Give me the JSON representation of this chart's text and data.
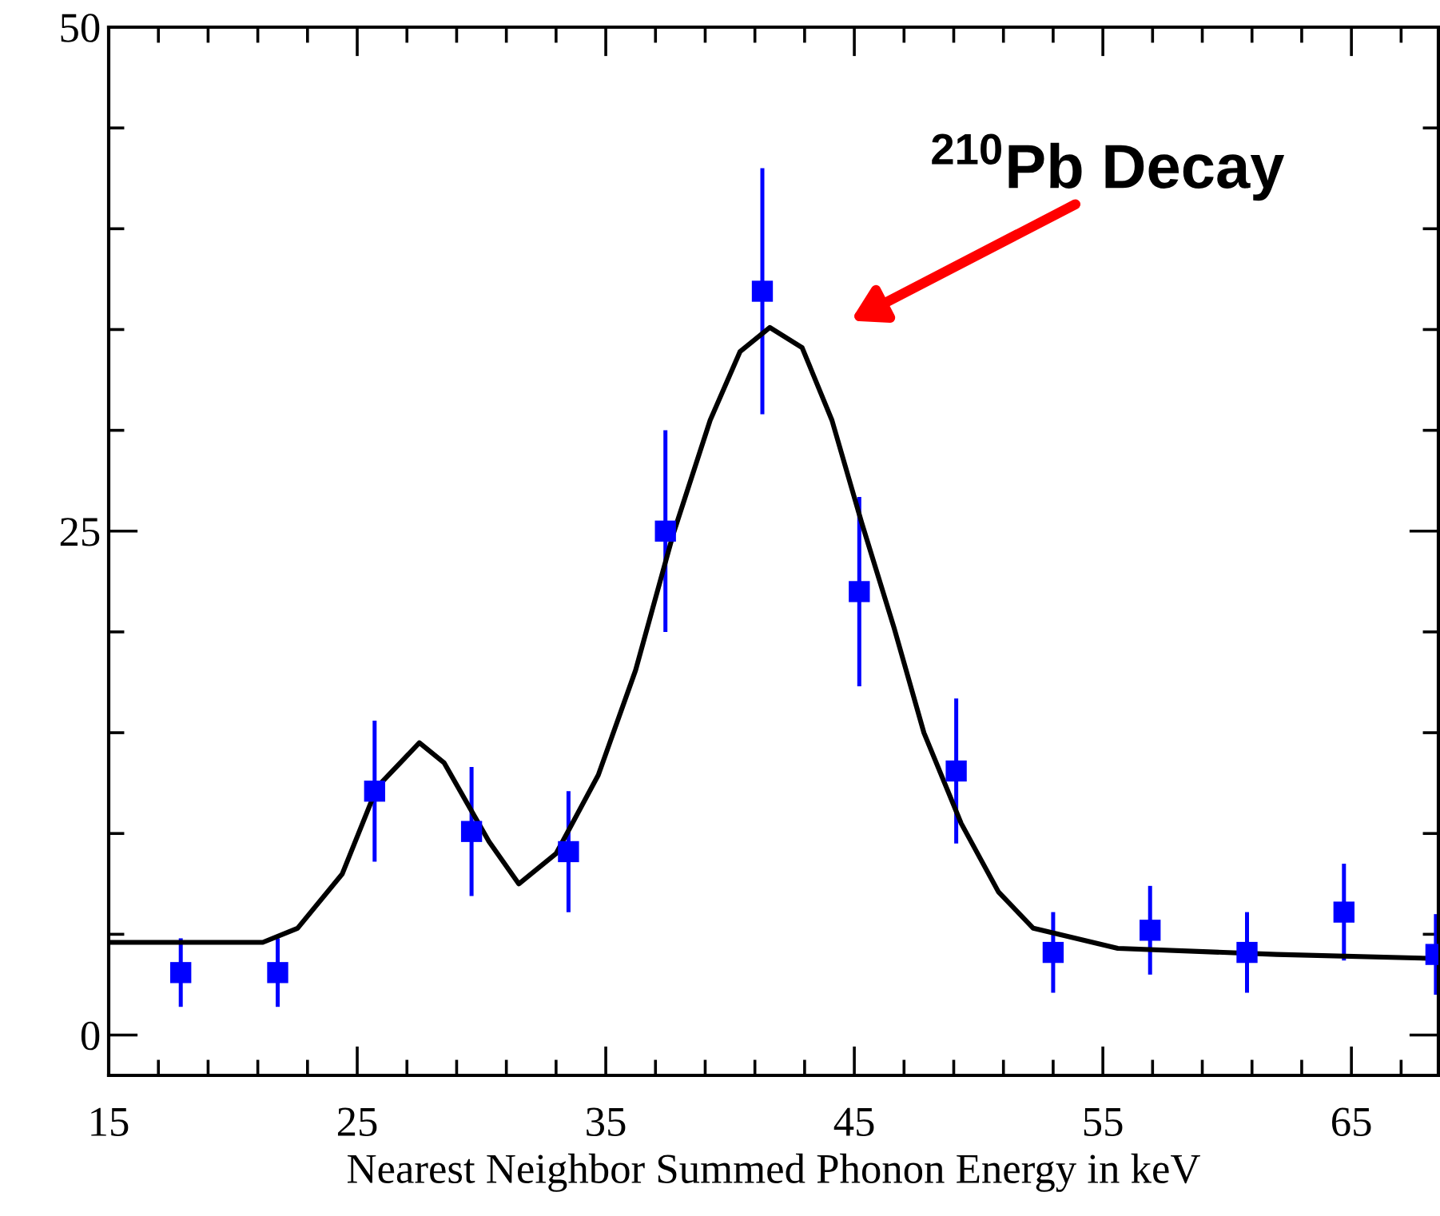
{
  "chart_data": {
    "type": "scatter",
    "xlabel": "Nearest Neighbor Summed Phonon Energy in keV",
    "xlim": [
      15,
      68.5
    ],
    "xticks": [
      15,
      25,
      35,
      45,
      55,
      65
    ],
    "ylim": [
      -2,
      50
    ],
    "yticks": [
      0,
      25,
      50
    ],
    "grid": false,
    "legend": false,
    "series": [
      {
        "color": "#0000ff",
        "marker": "square",
        "x": [
          17.9,
          21.8,
          25.7,
          29.6,
          33.5,
          37.4,
          41.3,
          45.2,
          49.1,
          53.0,
          56.9,
          60.8,
          64.7,
          68.4
        ],
        "values": [
          3.1,
          3.1,
          12.1,
          10.1,
          9.1,
          25,
          36.9,
          22.0,
          13.1,
          4.1,
          5.2,
          4.1,
          6.1,
          4.0
        ],
        "errors": [
          1.7,
          1.7,
          3.5,
          3.2,
          3,
          5,
          6.1,
          4.7,
          3.6,
          2,
          2.2,
          2,
          2.4,
          2
        ]
      },
      {
        "type": "line",
        "color": "#000000",
        "marker": "none",
        "line_style": "solid",
        "x": [
          15,
          21.2,
          22.6,
          24.4,
          25.8,
          27.5,
          28.5,
          30.3,
          31.5,
          33.0,
          34.7,
          36.2,
          37.7,
          39.2,
          40.4,
          41.6,
          42.9,
          44.1,
          45.3,
          46.6,
          47.8,
          49.3,
          50.8,
          52.2,
          55.6,
          62.0,
          68.4
        ],
        "values": [
          4.6,
          4.6,
          5.3,
          8.0,
          12.3,
          14.5,
          13.5,
          9.6,
          7.5,
          9.0,
          12.9,
          18.1,
          24.8,
          30.5,
          33.9,
          35.1,
          34.1,
          30.5,
          25.4,
          20.2,
          15.0,
          10.5,
          7.1,
          5.3,
          4.3,
          4.0,
          3.8
        ]
      }
    ],
    "annotations": [
      "$^{210}$Pb Decay"
    ]
  }
}
